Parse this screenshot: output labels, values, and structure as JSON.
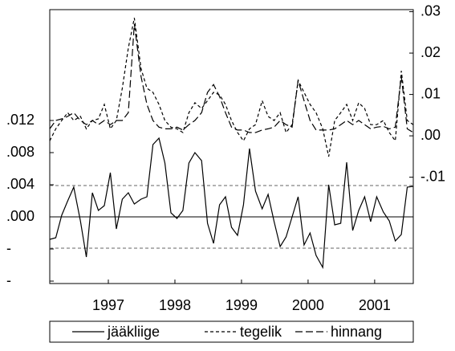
{
  "chart_data": {
    "type": "line",
    "x": [
      1996.12,
      1996.21,
      1996.3,
      1996.39,
      1996.48,
      1996.58,
      1996.67,
      1996.76,
      1996.85,
      1996.94,
      1997.03,
      1997.12,
      1997.21,
      1997.3,
      1997.39,
      1997.49,
      1997.58,
      1997.67,
      1997.76,
      1997.85,
      1997.94,
      1998.03,
      1998.12,
      1998.21,
      1998.3,
      1998.4,
      1998.49,
      1998.58,
      1998.67,
      1998.76,
      1998.85,
      1998.94,
      1999.03,
      1999.12,
      1999.21,
      1999.31,
      1999.4,
      1999.49,
      1999.58,
      1999.67,
      1999.76,
      1999.85,
      1999.94,
      2000.03,
      2000.12,
      2000.22,
      2000.31,
      2000.4,
      2000.49,
      2000.58,
      2000.67,
      2000.76,
      2000.85,
      2000.94,
      2001.03,
      2001.13,
      2001.22,
      2001.31,
      2001.4,
      2001.49,
      2001.58
    ],
    "xlim": [
      1996.12,
      2001.58
    ],
    "xticks": [
      1997,
      1998,
      1999,
      2000,
      2001
    ],
    "ylim": [
      -0.0083,
      0.0258
    ],
    "yticks": [
      {
        "value": 0.012,
        "label": ".012"
      },
      {
        "value": 0.008,
        "label": ".008"
      },
      {
        "value": 0.004,
        "label": ".004"
      },
      {
        "value": 0,
        "label": ".000"
      },
      {
        "value": -0.004,
        "label": "-"
      },
      {
        "value": -0.008,
        "label": "-"
      }
    ],
    "y2lim": [
      -0.0357,
      0.0305
    ],
    "y2ticks": [
      {
        "value": 0.03,
        "label": ".03"
      },
      {
        "value": 0.02,
        "label": ".02"
      },
      {
        "value": 0.01,
        "label": ".01"
      },
      {
        "value": 0,
        "label": ".00"
      },
      {
        "value": -0.01,
        "label": "-.01"
      }
    ],
    "hlines": [
      {
        "value": 0,
        "style": "solid"
      },
      {
        "value": 0.0039,
        "style": "dashed"
      },
      {
        "value": -0.0039,
        "style": "dashed"
      }
    ],
    "series": [
      {
        "name": "jääkliige",
        "color": "#000000",
        "style": "solid",
        "axis": "y",
        "values": [
          -0.0028,
          -0.0026,
          0.0002,
          0.002,
          0.0037,
          -0.0005,
          -0.005,
          0.003,
          0.0008,
          0.0014,
          0.0055,
          -0.0015,
          0.0022,
          0.003,
          0.0016,
          0.0022,
          0.0025,
          0.009,
          0.0098,
          0.0067,
          0.0005,
          -0.0002,
          0.0008,
          0.0067,
          0.008,
          0.007,
          -0.0008,
          -0.0033,
          0.0015,
          0.0025,
          -0.0013,
          -0.0023,
          0.0015,
          0.0085,
          0.0032,
          0.001,
          0.0028,
          -0.0006,
          -0.0037,
          -0.0025,
          0,
          0.0025,
          -0.0035,
          -0.002,
          -0.0048,
          -0.0063,
          0.004,
          -0.001,
          -0.0008,
          0.0068,
          -0.0017,
          0.0008,
          0.0025,
          -0.0006,
          0.0025,
          0.0006,
          -0.0005,
          -0.003,
          -0.0022,
          0.0037,
          0.0038
        ]
      },
      {
        "name": "tegelik",
        "color": "#000000",
        "style": "dashed",
        "axis": "y2",
        "values": [
          -0.0012,
          0.0017,
          0.0037,
          0.0056,
          0.0037,
          0.0047,
          0.0017,
          0.0037,
          0.0041,
          0.0076,
          0.0017,
          0.0037,
          0.0115,
          0.0212,
          0.0285,
          0.0163,
          0.0115,
          0.0105,
          0.0076,
          0.0037,
          0.0021,
          0.0017,
          0.0008,
          0.0056,
          0.008,
          0.0066,
          0.0085,
          0.0105,
          0.0099,
          0.0076,
          0.0037,
          0.0008,
          -0.0012,
          0.0017,
          0.0027,
          0.0085,
          0.0047,
          0.0037,
          0.0056,
          0.0008,
          0.0027,
          0.0134,
          0.0105,
          0.0076,
          0.0056,
          0.0017,
          -0.005,
          0.0037,
          0.0056,
          0.0076,
          0.0037,
          0.008,
          0.0066,
          0.0027,
          0.0027,
          0.0037,
          0.0008,
          -0.0012,
          0.0157,
          0.0037,
          0.0027
        ]
      },
      {
        "name": "hinnang",
        "color": "#000000",
        "style": "long-dashed",
        "axis": "y2",
        "values": [
          0.0017,
          0.0037,
          0.0041,
          0.0047,
          0.0056,
          0.0037,
          0.0027,
          0.0037,
          0.0027,
          0.0037,
          0.0027,
          0.0037,
          0.0037,
          0.0056,
          0.027,
          0.0144,
          0.0076,
          0.0037,
          0.0021,
          0.0017,
          0.0017,
          0.0021,
          0.0014,
          0.0027,
          0.0037,
          0.0056,
          0.0105,
          0.0124,
          0.0095,
          0.0056,
          0.0021,
          0.0014,
          0.0014,
          0.0008,
          0.0008,
          0.0014,
          0.0017,
          0.0021,
          0.0037,
          0.0027,
          0.0021,
          0.0134,
          0.0085,
          0.0037,
          0.0014,
          0.0014,
          0.0014,
          0.0017,
          0.0027,
          0.0037,
          0.0027,
          0.0037,
          0.0027,
          0.0017,
          0.0021,
          0.0023,
          0.0017,
          0.0021,
          0.0144,
          0.0017,
          0.0008
        ]
      }
    ]
  }
}
